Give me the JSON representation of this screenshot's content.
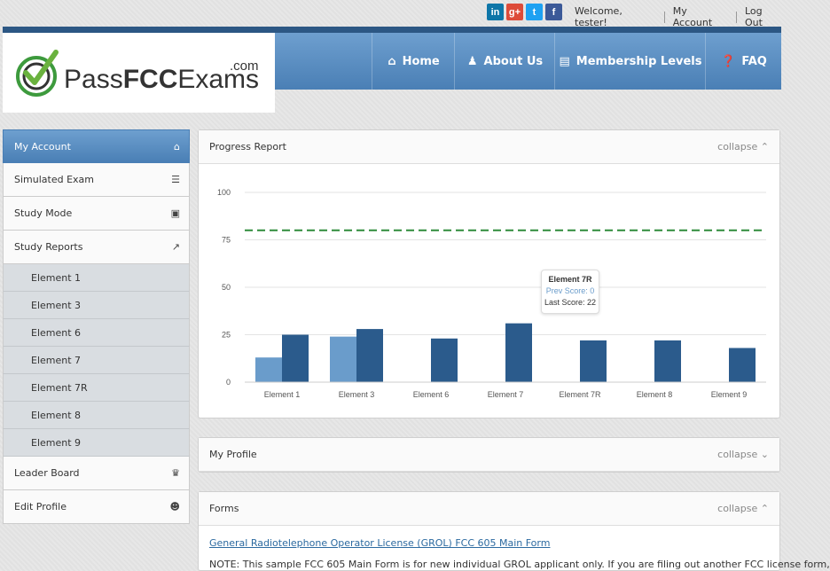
{
  "social": [
    {
      "name": "linkedin-icon",
      "glyph": "in",
      "color": "#0e76a8"
    },
    {
      "name": "google-plus-icon",
      "glyph": "g+",
      "color": "#dd4b39"
    },
    {
      "name": "twitter-icon",
      "glyph": "t",
      "color": "#1da1f2"
    },
    {
      "name": "facebook-icon",
      "glyph": "f",
      "color": "#3b5998"
    }
  ],
  "topnav": {
    "welcome": "Welcome, tester!",
    "my_account": "My Account",
    "logout": "Log Out"
  },
  "logo": {
    "pass": "Pass",
    "fcc": "FCC",
    "exams": "Exams",
    "com": ".com"
  },
  "nav": [
    {
      "label": "Home",
      "icon": "home-icon"
    },
    {
      "label": "About Us",
      "icon": "users-icon"
    },
    {
      "label": "Membership Levels",
      "icon": "id-card-icon"
    },
    {
      "label": "FAQ",
      "icon": "help-icon"
    }
  ],
  "sidebar": {
    "my_account": "My Account",
    "simulated_exam": "Simulated Exam",
    "study_mode": "Study Mode",
    "study_reports": "Study Reports",
    "sub": [
      "Element 1",
      "Element 3",
      "Element 6",
      "Element 7",
      "Element 7R",
      "Element 8",
      "Element 9"
    ],
    "leader_board": "Leader Board",
    "edit_profile": "Edit Profile"
  },
  "panels": {
    "progress_title": "Progress Report",
    "profile_title": "My Profile",
    "forms_title": "Forms",
    "collapse": "collapse"
  },
  "forms": {
    "link": "General Radiotelephone Operator License (GROL) FCC 605 Main Form",
    "note": "NOTE: This sample FCC 605 Main Form is for new individual GROL applicant only. If you are filing out another FCC license form,"
  },
  "tooltip": {
    "title": "Element 7R",
    "prev": "Prev Score: 0",
    "last": "Last Score: 22"
  },
  "colors": {
    "accent": "#4a7fb5",
    "dark_bar": "#2b5b8c",
    "light_bar": "#6a9ccb",
    "passing_line": "#2e8b3a"
  },
  "chart_data": {
    "type": "bar",
    "categories": [
      "Element 1",
      "Element 3",
      "Element 6",
      "Element 7",
      "Element 7R",
      "Element 8",
      "Element 9"
    ],
    "series": [
      {
        "name": "Prev Score",
        "values": [
          13,
          24,
          0,
          0,
          0,
          0,
          0
        ]
      },
      {
        "name": "Last Score",
        "values": [
          25,
          28,
          23,
          31,
          22,
          22,
          18
        ]
      }
    ],
    "yticks": [
      0,
      25,
      50,
      75,
      100
    ],
    "ylim": [
      0,
      100
    ],
    "passing_line": 80,
    "grid": true
  }
}
